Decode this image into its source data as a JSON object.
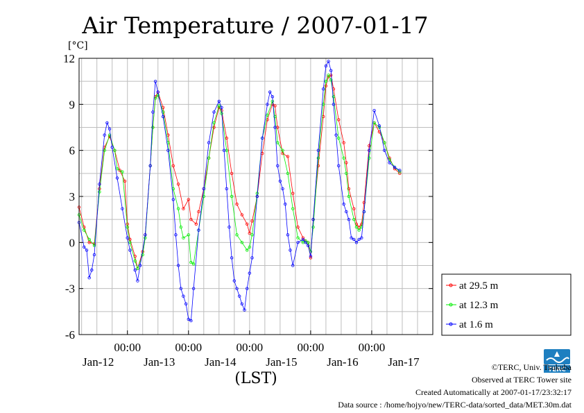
{
  "chart_data": {
    "type": "line",
    "title": "Air Temperature / 2007-01-17",
    "unit_label": "[°C]",
    "xlabel": "(LST)",
    "ylabel": "",
    "ylim": [
      -6,
      12
    ],
    "yticks": [
      -6,
      -3,
      0,
      3,
      6,
      9,
      12
    ],
    "x_unit": "hours since 2007-01-11 05:00 LST",
    "xlim": [
      0,
      139
    ],
    "x_ticks": [
      {
        "x": 19,
        "time": "00:00",
        "date": "Jan-12"
      },
      {
        "x": 43,
        "time": "00:00",
        "date": "Jan-13"
      },
      {
        "x": 67,
        "time": "00:00",
        "date": "Jan-14"
      },
      {
        "x": 91,
        "time": "00:00",
        "date": "Jan-15"
      },
      {
        "x": 115,
        "time": "00:00",
        "date": "Jan-16"
      },
      {
        "x": 139,
        "time": "",
        "date": "Jan-17"
      }
    ],
    "grid": true,
    "legend_position": "right",
    "series": [
      {
        "name": "at 29.5 m",
        "color": "#ff0000",
        "points": [
          [
            0,
            2.3
          ],
          [
            2,
            1.0
          ],
          [
            4,
            0.0
          ],
          [
            6,
            -0.1
          ],
          [
            8,
            3.5
          ],
          [
            10,
            6.2
          ],
          [
            12,
            6.9
          ],
          [
            14,
            6.0
          ],
          [
            16,
            4.7
          ],
          [
            18,
            4.0
          ],
          [
            19,
            1.2
          ],
          [
            20,
            0.2
          ],
          [
            22,
            -0.9
          ],
          [
            23,
            -1.7
          ],
          [
            25,
            -0.6
          ],
          [
            26,
            0.5
          ],
          [
            28,
            5.0
          ],
          [
            29,
            7.5
          ],
          [
            30,
            9.5
          ],
          [
            31,
            9.8
          ],
          [
            33,
            8.8
          ],
          [
            35,
            7.0
          ],
          [
            37,
            5.0
          ],
          [
            39,
            3.8
          ],
          [
            41,
            2.2
          ],
          [
            43,
            2.8
          ],
          [
            44,
            1.5
          ],
          [
            46,
            1.2
          ],
          [
            47,
            2.0
          ],
          [
            49,
            3.5
          ],
          [
            51,
            5.5
          ],
          [
            53,
            7.5
          ],
          [
            55,
            8.8
          ],
          [
            56,
            8.6
          ],
          [
            58,
            6.8
          ],
          [
            60,
            4.5
          ],
          [
            62,
            2.5
          ],
          [
            64,
            1.8
          ],
          [
            66,
            1.2
          ],
          [
            67,
            0.6
          ],
          [
            68,
            1.4
          ],
          [
            70,
            3.0
          ],
          [
            72,
            5.8
          ],
          [
            74,
            8.0
          ],
          [
            76,
            9.0
          ],
          [
            77,
            8.9
          ],
          [
            78,
            7.5
          ],
          [
            80,
            5.8
          ],
          [
            82,
            5.6
          ],
          [
            84,
            3.2
          ],
          [
            86,
            1.0
          ],
          [
            88,
            0.3
          ],
          [
            89,
            0.1
          ],
          [
            90,
            0.0
          ],
          [
            91,
            -1.0
          ],
          [
            92,
            1.5
          ],
          [
            94,
            5.0
          ],
          [
            96,
            8.2
          ],
          [
            97,
            10.2
          ],
          [
            98,
            10.8
          ],
          [
            99,
            10.9
          ],
          [
            100,
            10.0
          ],
          [
            102,
            8.0
          ],
          [
            104,
            6.5
          ],
          [
            105,
            5.2
          ],
          [
            106,
            3.5
          ],
          [
            108,
            2.2
          ],
          [
            109,
            1.2
          ],
          [
            110,
            1.0
          ],
          [
            111,
            1.2
          ],
          [
            112,
            2.6
          ],
          [
            114,
            6.3
          ],
          [
            116,
            7.8
          ],
          [
            118,
            7.2
          ],
          [
            120,
            6.5
          ],
          [
            122,
            5.5
          ],
          [
            124,
            4.8
          ],
          [
            126,
            4.5
          ]
        ]
      },
      {
        "name": "at 12.3 m",
        "color": "#00ee00",
        "points": [
          [
            0,
            1.8
          ],
          [
            2,
            0.8
          ],
          [
            4,
            0.2
          ],
          [
            6,
            -0.2
          ],
          [
            8,
            3.3
          ],
          [
            10,
            6.0
          ],
          [
            12,
            7.0
          ],
          [
            14,
            6.0
          ],
          [
            15,
            4.8
          ],
          [
            17,
            4.6
          ],
          [
            19,
            1.0
          ],
          [
            20,
            0.0
          ],
          [
            22,
            -1.2
          ],
          [
            23,
            -1.7
          ],
          [
            25,
            -0.8
          ],
          [
            26,
            0.3
          ],
          [
            28,
            5.0
          ],
          [
            29,
            7.5
          ],
          [
            30,
            9.4
          ],
          [
            31,
            9.6
          ],
          [
            33,
            8.5
          ],
          [
            35,
            6.5
          ],
          [
            37,
            3.5
          ],
          [
            39,
            2.2
          ],
          [
            40,
            1.0
          ],
          [
            41,
            0.3
          ],
          [
            43,
            0.5
          ],
          [
            44,
            -1.3
          ],
          [
            45,
            -1.4
          ],
          [
            47,
            0.8
          ],
          [
            49,
            3.0
          ],
          [
            51,
            5.5
          ],
          [
            53,
            7.8
          ],
          [
            55,
            8.9
          ],
          [
            56,
            8.4
          ],
          [
            58,
            6.0
          ],
          [
            60,
            3.0
          ],
          [
            62,
            0.5
          ],
          [
            64,
            0.0
          ],
          [
            66,
            -0.5
          ],
          [
            67,
            -0.3
          ],
          [
            68,
            0.5
          ],
          [
            70,
            3.2
          ],
          [
            72,
            6.8
          ],
          [
            74,
            8.3
          ],
          [
            76,
            9.2
          ],
          [
            77,
            8.2
          ],
          [
            78,
            6.5
          ],
          [
            80,
            6.0
          ],
          [
            82,
            4.5
          ],
          [
            84,
            2.2
          ],
          [
            86,
            0.3
          ],
          [
            88,
            0.0
          ],
          [
            89,
            0.1
          ],
          [
            90,
            0.0
          ],
          [
            91,
            -0.6
          ],
          [
            92,
            1.0
          ],
          [
            94,
            5.5
          ],
          [
            96,
            9.0
          ],
          [
            97,
            10.5
          ],
          [
            98,
            10.9
          ],
          [
            99,
            10.6
          ],
          [
            100,
            9.5
          ],
          [
            102,
            6.8
          ],
          [
            104,
            5.5
          ],
          [
            105,
            4.5
          ],
          [
            106,
            3.0
          ],
          [
            108,
            1.5
          ],
          [
            109,
            1.0
          ],
          [
            110,
            0.8
          ],
          [
            111,
            1.0
          ],
          [
            112,
            2.0
          ],
          [
            114,
            5.5
          ],
          [
            116,
            7.8
          ],
          [
            118,
            7.5
          ],
          [
            120,
            6.5
          ],
          [
            122,
            5.4
          ],
          [
            124,
            4.9
          ],
          [
            126,
            4.6
          ]
        ]
      },
      {
        "name": "at 1.6 m",
        "color": "#0000ff",
        "points": [
          [
            0,
            1.3
          ],
          [
            2,
            -0.3
          ],
          [
            3,
            -0.5
          ],
          [
            4,
            -2.3
          ],
          [
            5,
            -1.8
          ],
          [
            6,
            -0.8
          ],
          [
            8,
            3.8
          ],
          [
            10,
            7.0
          ],
          [
            11,
            7.8
          ],
          [
            12,
            7.4
          ],
          [
            13,
            6.2
          ],
          [
            15,
            4.2
          ],
          [
            17,
            2.2
          ],
          [
            19,
            0.3
          ],
          [
            20,
            -0.5
          ],
          [
            22,
            -1.8
          ],
          [
            23,
            -2.5
          ],
          [
            24,
            -1.5
          ],
          [
            26,
            0.5
          ],
          [
            28,
            5.0
          ],
          [
            29,
            8.5
          ],
          [
            30,
            10.5
          ],
          [
            31,
            9.8
          ],
          [
            33,
            8.2
          ],
          [
            35,
            6.0
          ],
          [
            37,
            2.8
          ],
          [
            38,
            0.5
          ],
          [
            39,
            -1.5
          ],
          [
            40,
            -3.0
          ],
          [
            41,
            -3.5
          ],
          [
            42,
            -4.0
          ],
          [
            43,
            -5.0
          ],
          [
            44,
            -5.1
          ],
          [
            45,
            -3.0
          ],
          [
            47,
            0.8
          ],
          [
            49,
            3.5
          ],
          [
            51,
            6.5
          ],
          [
            53,
            8.5
          ],
          [
            55,
            9.2
          ],
          [
            56,
            8.8
          ],
          [
            57,
            6.0
          ],
          [
            58,
            3.5
          ],
          [
            59,
            1.0
          ],
          [
            60,
            -1.0
          ],
          [
            61,
            -2.5
          ],
          [
            62,
            -3.0
          ],
          [
            63,
            -3.5
          ],
          [
            64,
            -4.0
          ],
          [
            65,
            -4.4
          ],
          [
            66,
            -3.0
          ],
          [
            67,
            -2.0
          ],
          [
            68,
            -1.0
          ],
          [
            70,
            3.0
          ],
          [
            72,
            6.8
          ],
          [
            74,
            9.0
          ],
          [
            75,
            9.8
          ],
          [
            76,
            9.5
          ],
          [
            77,
            7.5
          ],
          [
            78,
            5.0
          ],
          [
            79,
            4.0
          ],
          [
            80,
            3.5
          ],
          [
            81,
            2.5
          ],
          [
            82,
            0.5
          ],
          [
            83,
            -0.5
          ],
          [
            84,
            -1.5
          ],
          [
            86,
            0.0
          ],
          [
            88,
            0.2
          ],
          [
            89,
            0.0
          ],
          [
            90,
            -0.2
          ],
          [
            91,
            -0.9
          ],
          [
            92,
            1.5
          ],
          [
            94,
            6.0
          ],
          [
            96,
            10.0
          ],
          [
            97,
            11.5
          ],
          [
            98,
            11.8
          ],
          [
            99,
            11.2
          ],
          [
            100,
            9.0
          ],
          [
            101,
            7.0
          ],
          [
            102,
            5.0
          ],
          [
            104,
            2.5
          ],
          [
            105,
            2.0
          ],
          [
            106,
            1.5
          ],
          [
            107,
            0.3
          ],
          [
            108,
            0.2
          ],
          [
            109,
            0.0
          ],
          [
            110,
            0.2
          ],
          [
            111,
            0.3
          ],
          [
            112,
            2.0
          ],
          [
            114,
            6.0
          ],
          [
            116,
            8.6
          ],
          [
            118,
            7.6
          ],
          [
            120,
            6.0
          ],
          [
            122,
            5.2
          ],
          [
            124,
            4.9
          ],
          [
            126,
            4.7
          ]
        ]
      }
    ]
  },
  "footer": {
    "copyright": "©TERC, Univ. Tsukuba",
    "observed": "Observed at TERC Tower site",
    "created": "Created Automatically at 2007-01-17/23:32:17",
    "source": "Data source : /home/hojyo/new/TERC-data/sorted_data/MET.30m.dat"
  },
  "logo": {
    "text": "TERC",
    "color": "#1e7fc0"
  }
}
